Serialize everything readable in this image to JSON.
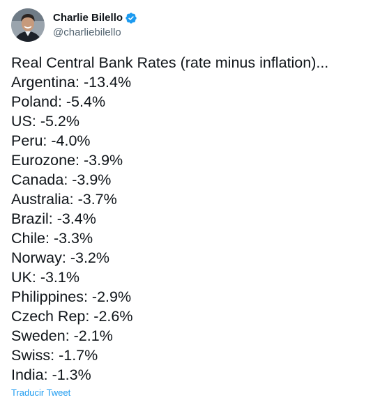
{
  "author": {
    "display_name": "Charlie Bilello",
    "handle": "@charliebilello",
    "verified_icon": "verified-badge-icon",
    "verified_color": "#1d9bf0"
  },
  "tweet": {
    "title_line": "Real Central Bank Rates (rate minus inflation)...",
    "lines": [
      "Argentina: -13.4%",
      "Poland: -5.4%",
      "US: -5.2%",
      "Peru: -4.0%",
      "Eurozone: -3.9%",
      "Canada: -3.9%",
      "Australia: -3.7%",
      "Brazil: -3.4%",
      "Chile: -3.3%",
      "Norway: -3.2%",
      "UK: -3.1%",
      "Philippines: -2.9%",
      "Czech Rep: -2.6%",
      "Sweden: -2.1%",
      "Swiss: -1.7%",
      "India: -1.3%"
    ]
  },
  "actions": {
    "translate_label": "Traducir Tweet",
    "link_color": "#1d9bf0"
  }
}
